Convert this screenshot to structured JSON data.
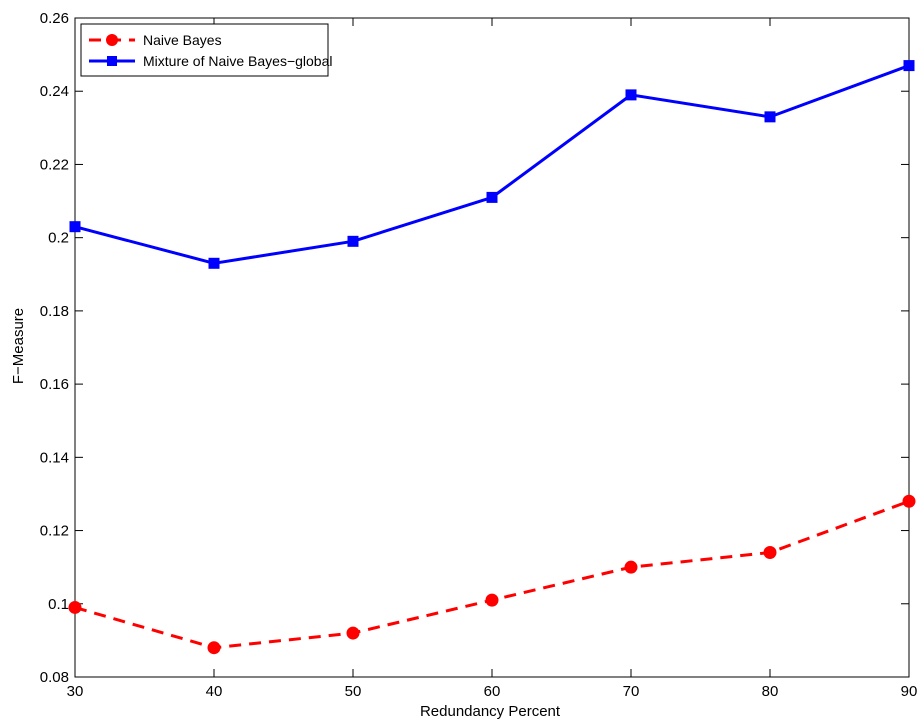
{
  "chart_data": {
    "type": "line",
    "title": "",
    "xlabel": "Redundancy Percent",
    "ylabel": "F−Measure",
    "x": [
      30,
      40,
      50,
      60,
      70,
      80,
      90
    ],
    "xlim": [
      30,
      90
    ],
    "ylim": [
      0.08,
      0.26
    ],
    "xticks": [
      30,
      40,
      50,
      60,
      70,
      80,
      90
    ],
    "xtick_labels": [
      "30",
      "40",
      "50",
      "60",
      "70",
      "80",
      "90"
    ],
    "yticks": [
      0.08,
      0.1,
      0.12,
      0.14,
      0.16,
      0.18,
      0.2,
      0.22,
      0.24,
      0.26
    ],
    "ytick_labels": [
      "0.08",
      "0.1",
      "0.12",
      "0.14",
      "0.16",
      "0.18",
      "0.2",
      "0.22",
      "0.24",
      "0.26"
    ],
    "grid": false,
    "legend_position": "top-left",
    "series": [
      {
        "name": "Naive Bayes",
        "values": [
          0.099,
          0.088,
          0.092,
          0.101,
          0.11,
          0.114,
          0.128
        ],
        "color": "#ff0000",
        "line_style": "dashed",
        "marker": "circle"
      },
      {
        "name": "Mixture of Naive Bayes−global",
        "values": [
          0.203,
          0.193,
          0.199,
          0.211,
          0.239,
          0.233,
          0.247
        ],
        "color": "#0000ff",
        "line_style": "solid",
        "marker": "square"
      }
    ]
  }
}
